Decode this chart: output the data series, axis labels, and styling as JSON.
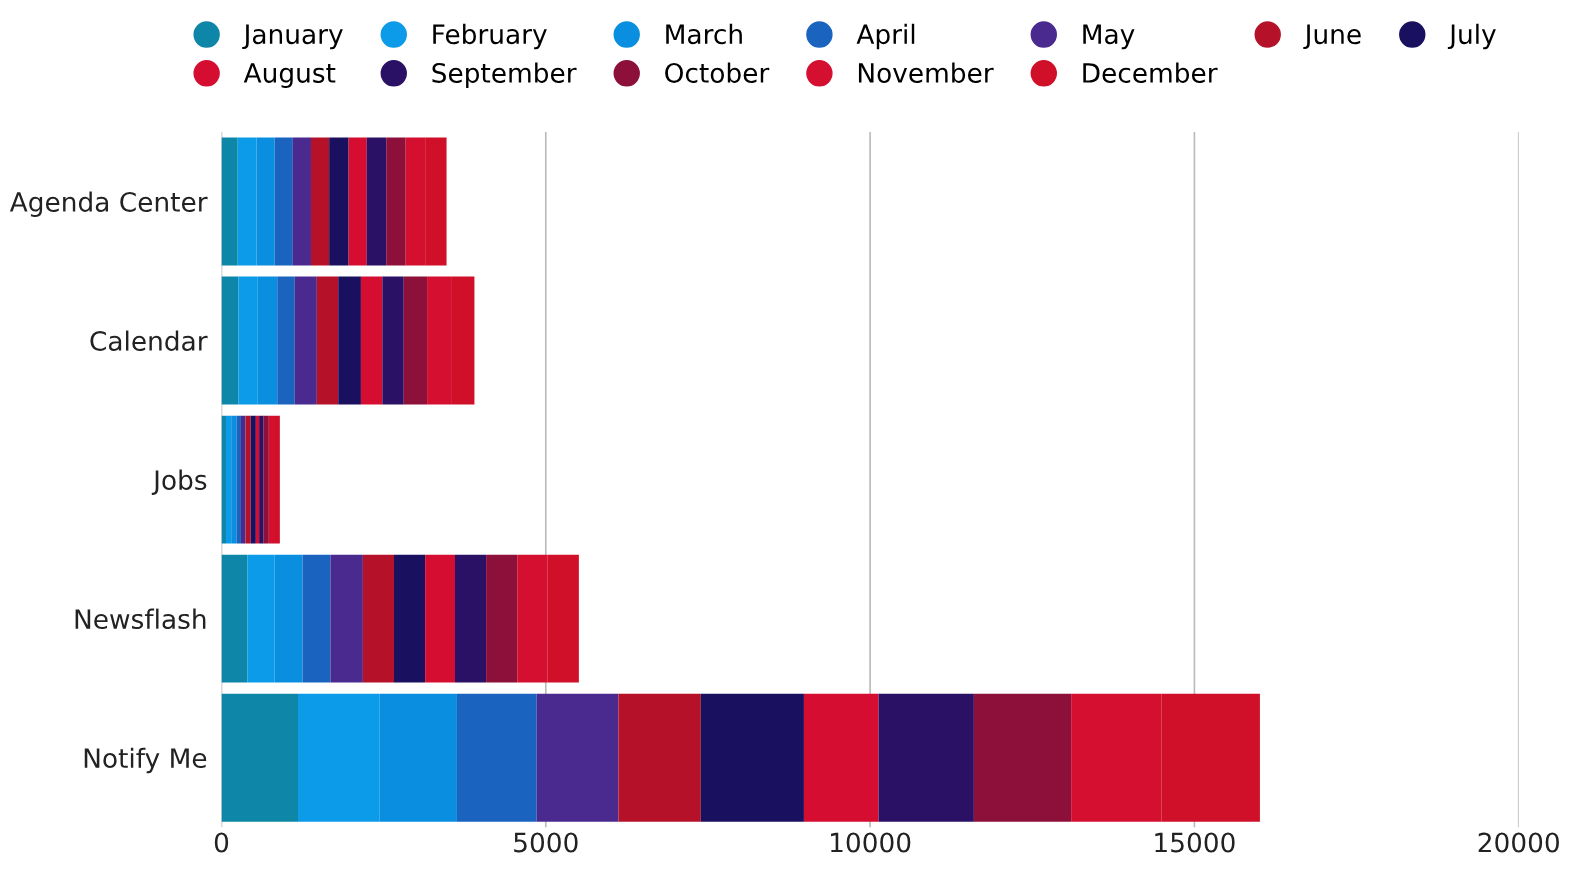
{
  "chart_data": {
    "type": "bar",
    "orientation": "horizontal",
    "stacked": true,
    "categories": [
      "Agenda Center",
      "Calendar",
      "Jobs",
      "Newsflash",
      "Notify Me"
    ],
    "series": [
      {
        "name": "January",
        "color": "#0e86a8",
        "values": [
          250,
          260,
          70,
          400,
          1180
        ]
      },
      {
        "name": "February",
        "color": "#0b9be8",
        "values": [
          290,
          300,
          80,
          420,
          1260
        ]
      },
      {
        "name": "March",
        "color": "#0a8fe0",
        "values": [
          280,
          300,
          80,
          430,
          1190
        ]
      },
      {
        "name": "April",
        "color": "#1a64bf",
        "values": [
          280,
          270,
          70,
          430,
          1230
        ]
      },
      {
        "name": "May",
        "color": "#4b2a8f",
        "values": [
          280,
          340,
          70,
          500,
          1260
        ]
      },
      {
        "name": "June",
        "color": "#b5122a",
        "values": [
          280,
          330,
          80,
          480,
          1270
        ]
      },
      {
        "name": "July",
        "color": "#1a1060",
        "values": [
          300,
          350,
          80,
          480,
          1590
        ]
      },
      {
        "name": "August",
        "color": "#d50e31",
        "values": [
          280,
          330,
          50,
          460,
          1150
        ]
      },
      {
        "name": "September",
        "color": "#2a1166",
        "values": [
          300,
          330,
          70,
          480,
          1470
        ]
      },
      {
        "name": "October",
        "color": "#8c103a",
        "values": [
          300,
          360,
          80,
          480,
          1500
        ]
      },
      {
        "name": "November",
        "color": "#d50f30",
        "values": [
          300,
          370,
          80,
          470,
          1390
        ]
      },
      {
        "name": "December",
        "color": "#cf1028",
        "values": [
          330,
          360,
          90,
          480,
          1520
        ]
      }
    ],
    "xlim": [
      0,
      20000
    ],
    "xticks": [
      0,
      5000,
      10000,
      15000,
      20000
    ],
    "grid": "x",
    "legend": "top",
    "marker": "circle"
  }
}
